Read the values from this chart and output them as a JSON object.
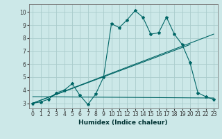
{
  "xlabel": "Humidex (Indice chaleur)",
  "background_color": "#cce8e8",
  "grid_color": "#aacccc",
  "line_color": "#006666",
  "xlim": [
    -0.5,
    23.5
  ],
  "ylim": [
    2.6,
    10.6
  ],
  "xticks": [
    0,
    1,
    2,
    3,
    4,
    5,
    6,
    7,
    8,
    9,
    10,
    11,
    12,
    13,
    14,
    15,
    16,
    17,
    18,
    19,
    20,
    21,
    22,
    23
  ],
  "yticks": [
    3,
    4,
    5,
    6,
    7,
    8,
    9,
    10
  ],
  "series": [
    {
      "x": [
        0,
        1,
        2,
        3,
        4,
        5,
        6,
        7,
        8,
        9,
        10,
        11,
        12,
        13,
        14,
        15,
        16,
        17,
        18,
        19,
        20,
        21,
        22,
        23
      ],
      "y": [
        3.0,
        3.1,
        3.3,
        3.8,
        4.0,
        4.5,
        3.6,
        2.9,
        3.7,
        5.0,
        9.1,
        8.8,
        9.4,
        10.1,
        9.6,
        8.3,
        8.4,
        9.6,
        8.3,
        7.5,
        6.1,
        3.8,
        3.5,
        3.3
      ],
      "marker": "*",
      "linestyle": "-",
      "linewidth": 0.8,
      "markersize": 3
    },
    {
      "x": [
        0,
        20
      ],
      "y": [
        3.0,
        7.5
      ],
      "marker": null,
      "linestyle": "-",
      "linewidth": 0.8,
      "markersize": 0
    },
    {
      "x": [
        0,
        23
      ],
      "y": [
        3.0,
        8.3
      ],
      "marker": null,
      "linestyle": "-",
      "linewidth": 0.8,
      "markersize": 0
    },
    {
      "x": [
        0,
        23
      ],
      "y": [
        3.5,
        3.4
      ],
      "marker": null,
      "linestyle": "-",
      "linewidth": 0.8,
      "markersize": 0
    }
  ]
}
